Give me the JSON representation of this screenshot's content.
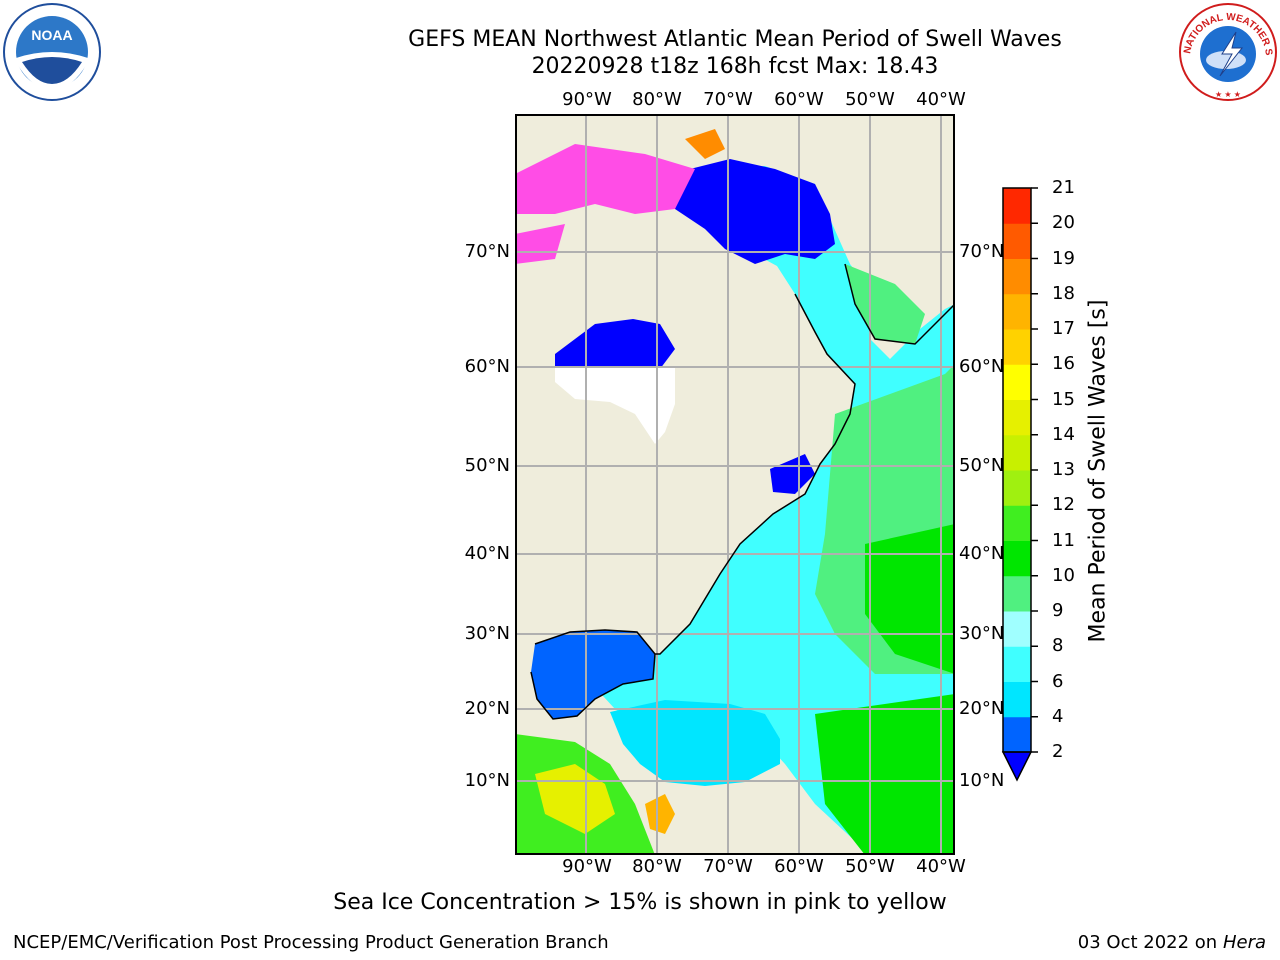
{
  "title_line1": "GEFS MEAN Northwest Atlantic Mean Period of Swell Waves",
  "title_line2": "20220928 t18z 168h fcst   Max: 18.43",
  "lon_labels": [
    "90°W",
    "80°W",
    "70°W",
    "60°W",
    "50°W",
    "40°W"
  ],
  "lat_labels": [
    "70°N",
    "60°N",
    "50°N",
    "40°N",
    "30°N",
    "20°N",
    "10°N"
  ],
  "colorbar": {
    "label": "Mean Period of Swell Waves [s]",
    "ticks": [
      "2",
      "4",
      "6",
      "8",
      "9",
      "10",
      "11",
      "12",
      "13",
      "14",
      "15",
      "16",
      "17",
      "18",
      "19",
      "20",
      "21"
    ],
    "colors": [
      "#0064ff",
      "#00e6ff",
      "#40ffff",
      "#a0ffff",
      "#50f080",
      "#00e600",
      "#40ee20",
      "#a0f010",
      "#c8f000",
      "#e6f000",
      "#ffff00",
      "#ffd200",
      "#ffb400",
      "#ff8c00",
      "#ff5a00",
      "#ff2800"
    ],
    "under_color": "#0000ff"
  },
  "colors": {
    "land": "#efeddc",
    "ocean_base": "#40ffff",
    "grid": "#b0b0b0",
    "sea_ice": "#ff4de6"
  },
  "caption": "Sea Ice Concentration > 15% is shown in pink to yellow",
  "footer_left": "NCEP/EMC/Verification Post Processing Product Generation Branch",
  "footer_date": "03 Oct 2022 on",
  "footer_machine": "Hera",
  "logos": {
    "noaa_text": "NOAA",
    "nws_text": "NATIONAL WEATHER SERVICE"
  }
}
